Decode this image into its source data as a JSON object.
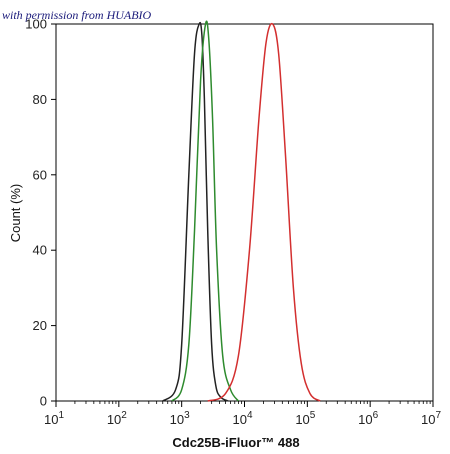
{
  "watermark": "with permission from HUABIO",
  "chart_data": {
    "type": "line",
    "title": "",
    "xlabel": "Cdc25B-iFluor™ 488",
    "ylabel": "Count  (%)",
    "x_scale": "log",
    "xlim": [
      10,
      10000000
    ],
    "ylim": [
      0,
      100
    ],
    "x_ticks": [
      {
        "base": "10",
        "exp": "1"
      },
      {
        "base": "10",
        "exp": "2"
      },
      {
        "base": "10",
        "exp": "3"
      },
      {
        "base": "10",
        "exp": "4"
      },
      {
        "base": "10",
        "exp": "5"
      },
      {
        "base": "10",
        "exp": "6"
      },
      {
        "base": "10",
        "exp": "7"
      }
    ],
    "y_ticks": [
      "0",
      "20",
      "40",
      "60",
      "80",
      "100"
    ],
    "grid": false,
    "series": [
      {
        "color": "#222222",
        "x": [
          500,
          800,
          1000,
          1300,
          1600,
          1900,
          2100,
          2300,
          2600,
          3000,
          3500,
          4200,
          5500
        ],
        "y": [
          0,
          3,
          15,
          60,
          92,
          100,
          97,
          80,
          45,
          15,
          4,
          1,
          0
        ]
      },
      {
        "color": "#2e8b2e",
        "x": [
          700,
          1000,
          1300,
          1600,
          2000,
          2400,
          2700,
          3100,
          3600,
          4500,
          6000,
          8000
        ],
        "y": [
          0,
          3,
          15,
          45,
          85,
          100,
          96,
          75,
          40,
          12,
          3,
          0
        ]
      },
      {
        "color": "#d32f2f",
        "x": [
          2600,
          5000,
          8000,
          12000,
          17000,
          22000,
          28000,
          35000,
          45000,
          60000,
          80000,
          110000,
          160000
        ],
        "y": [
          0,
          2,
          12,
          40,
          75,
          95,
          100,
          92,
          65,
          30,
          10,
          2,
          0
        ]
      }
    ]
  }
}
